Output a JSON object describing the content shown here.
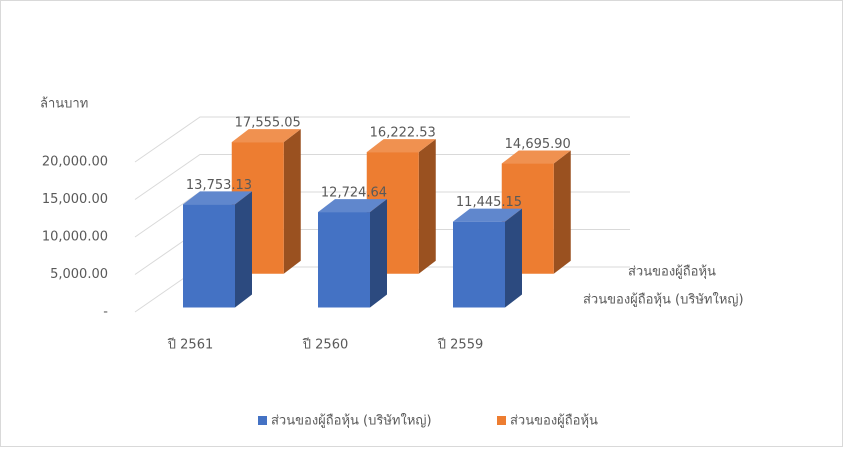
{
  "chart_data": {
    "type": "bar3d",
    "y_axis_title": "ล้านบาท",
    "categories": [
      "ปี 2561",
      "ปี 2560",
      "ปี 2559"
    ],
    "series": [
      {
        "name": "ส่วนของผู้ถือหุ้น (บริษัทใหญ่)",
        "color": "#4472c4",
        "values": [
          13753.13,
          12724.64,
          11445.15
        ],
        "value_labels": [
          "13,753.13",
          "12,724.64",
          "11,445.15"
        ]
      },
      {
        "name": "ส่วนของผู้ถือหุ้น",
        "color": "#ed7d31",
        "values": [
          17555.05,
          16222.53,
          14695.9
        ],
        "value_labels": [
          "17,555.05",
          "16,222.53",
          "14,695.90"
        ]
      }
    ],
    "ylim": [
      0,
      20000
    ],
    "yticks": [
      {
        "value": 0,
        "label": "-"
      },
      {
        "value": 5000,
        "label": "5,000.00"
      },
      {
        "value": 10000,
        "label": "10,000.00"
      },
      {
        "value": 15000,
        "label": "15,000.00"
      },
      {
        "value": 20000,
        "label": "20,000.00"
      }
    ],
    "grid": true,
    "legend": "bottom"
  }
}
